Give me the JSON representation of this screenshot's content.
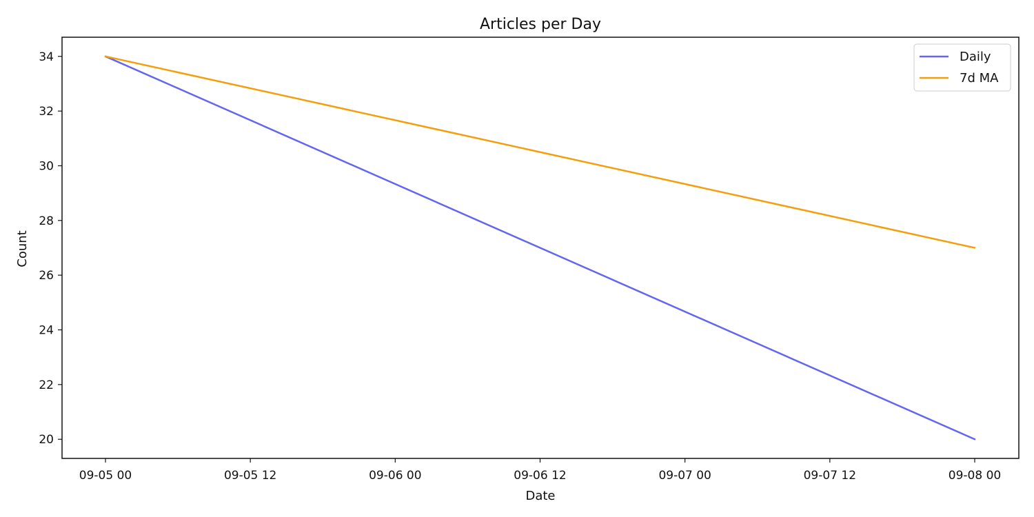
{
  "chart_data": {
    "type": "line",
    "title": "Articles per Day",
    "xlabel": "Date",
    "ylabel": "Count",
    "x": [
      "2023-09-05",
      "2023-09-08"
    ],
    "x_ticks": [
      "09-05 00",
      "09-05 12",
      "09-06 00",
      "09-06 12",
      "09-07 00",
      "09-07 12",
      "09-08 00"
    ],
    "y_ticks": [
      20,
      22,
      24,
      26,
      28,
      30,
      32,
      34
    ],
    "ylim": [
      19.3,
      34.7
    ],
    "grid": false,
    "legend_position": "top-right",
    "series": [
      {
        "name": "Daily",
        "color": "#6366f1",
        "x": [
          "2023-09-05",
          "2023-09-08"
        ],
        "values": [
          34,
          20
        ]
      },
      {
        "name": "7d MA",
        "color": "#f59e0b",
        "x": [
          "2023-09-05",
          "2023-09-08"
        ],
        "values": [
          34,
          27
        ]
      }
    ]
  }
}
